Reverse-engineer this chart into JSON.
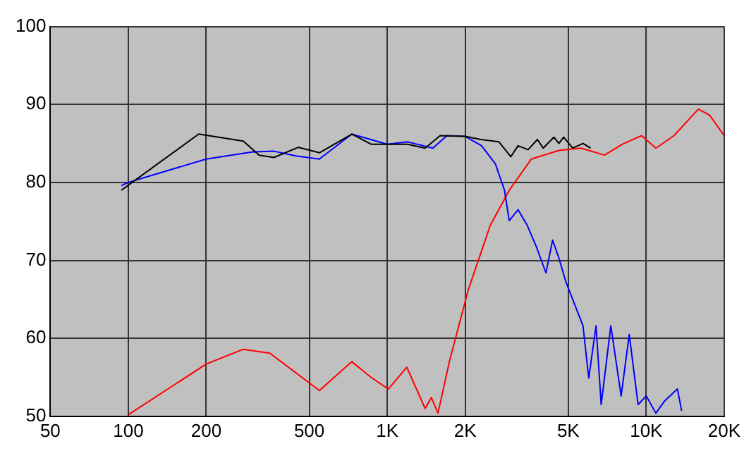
{
  "chart_data": {
    "type": "line",
    "log": "x",
    "grid": true,
    "marker": "none",
    "line_style": "solid",
    "xlim": [
      50,
      20000
    ],
    "ylim": [
      50,
      100
    ],
    "xticks": [
      50,
      100,
      200,
      500,
      {
        "value": 1000,
        "label": "1K"
      },
      {
        "value": 2000,
        "label": "2K"
      },
      {
        "value": 5000,
        "label": "5K"
      },
      {
        "value": 10000,
        "label": "10K"
      },
      {
        "value": 20000,
        "label": "20K"
      }
    ],
    "yticks": [
      50,
      60,
      70,
      80,
      90,
      100
    ],
    "series": [
      {
        "color": "#000000",
        "x": [
          94,
          187,
          278,
          320,
          365,
          453,
          547,
          730,
          866,
          1000,
          1200,
          1400,
          1600,
          2000,
          2300,
          2700,
          3000,
          3200,
          3500,
          3800,
          4000,
          4400,
          4600,
          4800,
          5200,
          5700,
          6100
        ],
        "values": [
          79,
          86.2,
          85.3,
          83.5,
          83.2,
          84.5,
          83.8,
          86.2,
          84.9,
          84.9,
          84.9,
          84.4,
          86,
          85.9,
          85.5,
          85.2,
          83.3,
          84.7,
          84.2,
          85.5,
          84.4,
          85.8,
          85,
          85.8,
          84.4,
          85,
          84.4
        ]
      },
      {
        "color": "#0000ff",
        "x": [
          94,
          100,
          200,
          300,
          365,
          443,
          547,
          730,
          866,
          1000,
          1200,
          1500,
          1700,
          2000,
          2313,
          2614,
          2836,
          2958,
          3200,
          3470,
          3770,
          4100,
          4350,
          4600,
          4900,
          5200,
          5700,
          6000,
          6400,
          6700,
          7300,
          8000,
          8600,
          9300,
          10000,
          10900,
          11800,
          13200,
          13700
        ],
        "values": [
          79.6,
          80,
          83,
          83.9,
          84,
          83.4,
          83,
          86.2,
          null,
          84.9,
          85.2,
          84.4,
          86,
          85.9,
          84.7,
          82.4,
          79,
          75.1,
          76.5,
          74.5,
          71.7,
          68.4,
          72.6,
          70.3,
          67.2,
          65,
          61.6,
          54.9,
          61.6,
          51.5,
          61.6,
          52.6,
          60.5,
          51.5,
          52.6,
          50.4,
          52,
          53.5,
          50.7
        ]
      },
      {
        "color": "#ff0000",
        "x": [
          100,
          200,
          278,
          352,
          547,
          730,
          866,
          1010,
          1190,
          1400,
          1480,
          1570,
          1740,
          2050,
          2500,
          2960,
          3600,
          4600,
          5600,
          6900,
          8100,
          9600,
          10900,
          12800,
          15900,
          17600,
          20000
        ],
        "values": [
          50.2,
          56.7,
          58.6,
          58.1,
          53.3,
          57,
          55,
          53.5,
          56.3,
          51,
          52.4,
          50.4,
          57.1,
          66.1,
          74.5,
          79,
          83,
          84.1,
          84.4,
          83.5,
          84.9,
          86,
          84.4,
          86,
          89.4,
          88.6,
          86
        ]
      }
    ]
  }
}
